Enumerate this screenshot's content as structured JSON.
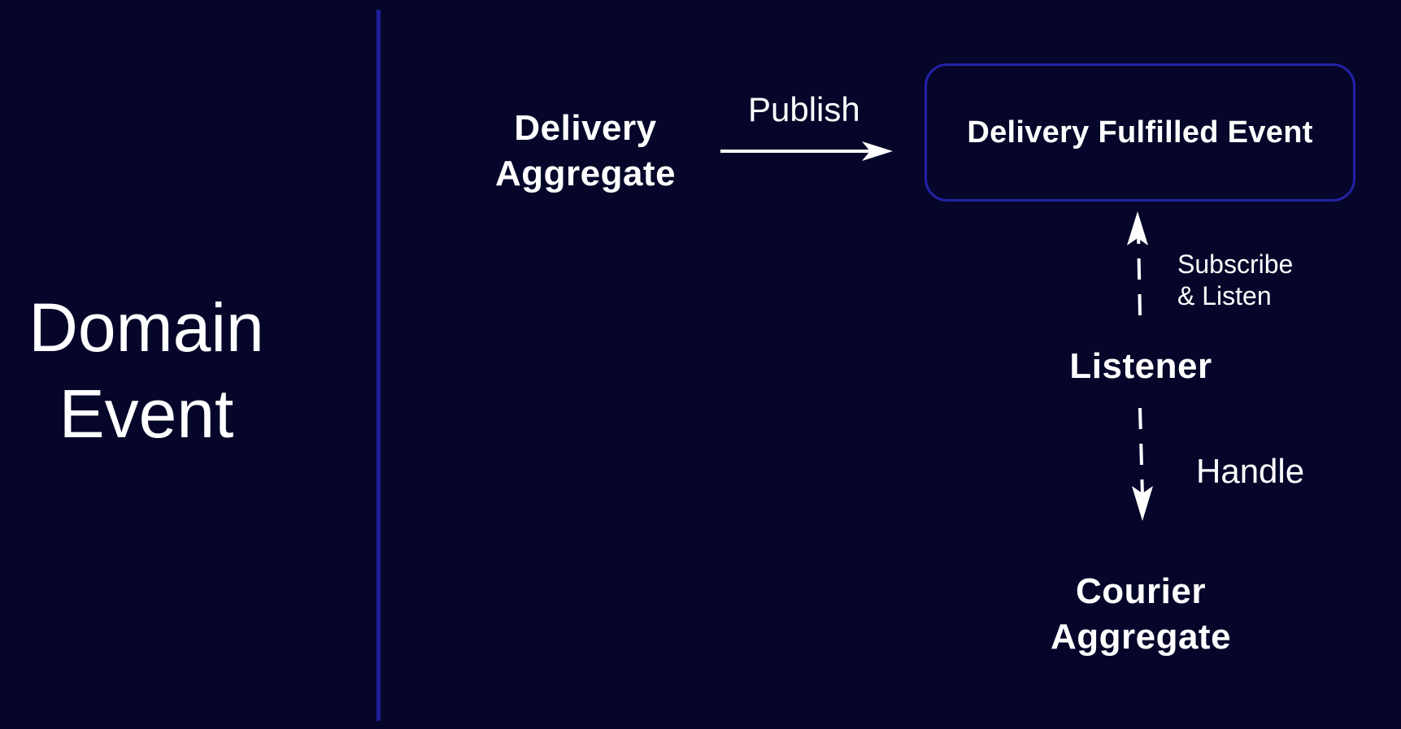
{
  "title": {
    "line1": "Domain",
    "line2": "Event"
  },
  "nodes": {
    "delivery_aggregate": {
      "line1": "Delivery",
      "line2": "Aggregate"
    },
    "event": {
      "label": "Delivery Fulfilled Event"
    },
    "listener": {
      "label": "Listener"
    },
    "courier_aggregate": {
      "line1": "Courier",
      "line2": "Aggregate"
    }
  },
  "edges": {
    "publish": "Publish",
    "subscribe": {
      "line1": "Subscribe",
      "line2": "& Listen"
    },
    "handle": "Handle"
  },
  "colors": {
    "background": "#06062a",
    "divider": "#1e1e9c",
    "box_border": "#2222a8",
    "text": "#ffffff"
  }
}
